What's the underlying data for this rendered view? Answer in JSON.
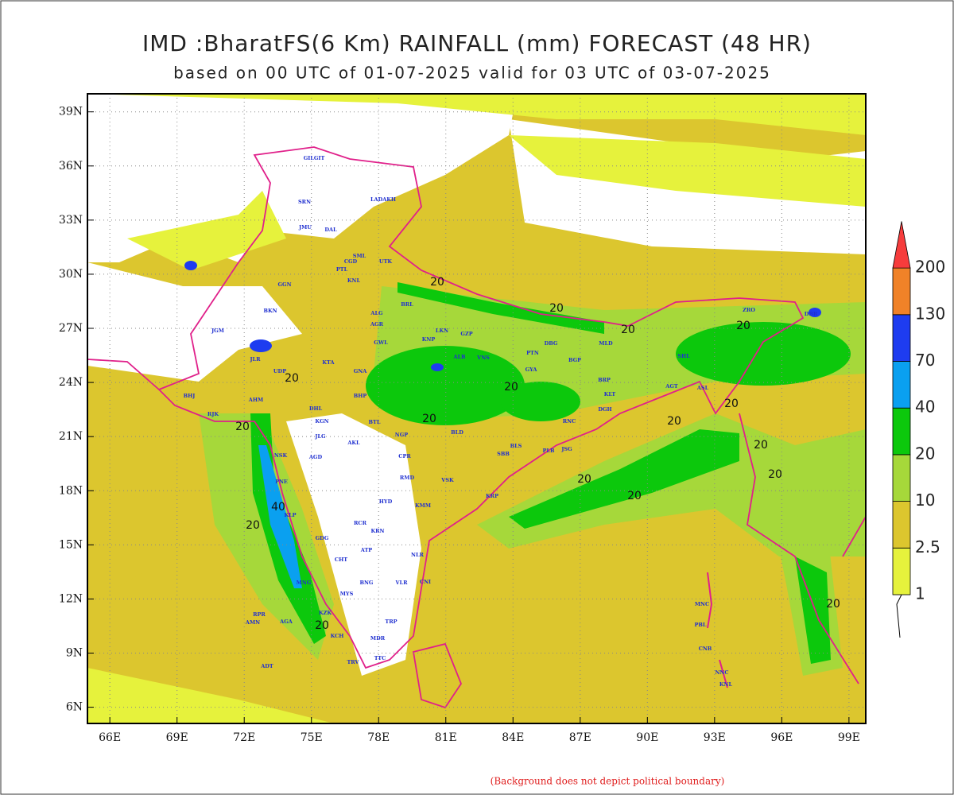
{
  "title": "IMD :BharatFS(6 Km) RAINFALL (mm) FORECAST (48 HR)",
  "subtitle": "based on 00 UTC of 01-07-2025 valid for 03 UTC of 03-07-2025",
  "footer": "(Background does not depict political boundary)",
  "map": {
    "xlim": [
      65,
      99.75
    ],
    "ylim": [
      5.1,
      40
    ],
    "xticks": [
      {
        "value": 66,
        "label": "66E"
      },
      {
        "value": 69,
        "label": "69E"
      },
      {
        "value": 72,
        "label": "72E"
      },
      {
        "value": 75,
        "label": "75E"
      },
      {
        "value": 78,
        "label": "78E"
      },
      {
        "value": 81,
        "label": "81E"
      },
      {
        "value": 84,
        "label": "84E"
      },
      {
        "value": 87,
        "label": "87E"
      },
      {
        "value": 90,
        "label": "90E"
      },
      {
        "value": 93,
        "label": "93E"
      },
      {
        "value": 96,
        "label": "96E"
      },
      {
        "value": 99,
        "label": "99E"
      }
    ],
    "yticks": [
      {
        "value": 6,
        "label": "6N"
      },
      {
        "value": 9,
        "label": "9N"
      },
      {
        "value": 12,
        "label": "12N"
      },
      {
        "value": 15,
        "label": "15N"
      },
      {
        "value": 18,
        "label": "18N"
      },
      {
        "value": 21,
        "label": "21N"
      },
      {
        "value": 24,
        "label": "24N"
      },
      {
        "value": 27,
        "label": "27N"
      },
      {
        "value": 30,
        "label": "30N"
      },
      {
        "value": 33,
        "label": "33N"
      },
      {
        "value": 36,
        "label": "36N"
      },
      {
        "value": 39,
        "label": "39N"
      }
    ],
    "grid": true,
    "stations": [
      "GILGIT",
      "LADAKH",
      "SRN",
      "JMU",
      "DAL",
      "SML",
      "UTK",
      "CGD",
      "PTL",
      "KNL",
      "GGN",
      "BKN",
      "JGM",
      "JLR",
      "UDP",
      "KTA",
      "AHM",
      "BHJ",
      "RJK",
      "DHL",
      "KGN",
      "JLG",
      "NSK",
      "AGD",
      "PNE",
      "KLP",
      "GDG",
      "CHT",
      "MYS",
      "MNG",
      "KZK",
      "KCH",
      "MDR",
      "TRV",
      "TTC",
      "TRP",
      "BNG",
      "VLR",
      "CNI",
      "NLR",
      "ATP",
      "KRN",
      "RCR",
      "HYD",
      "KMM",
      "RMD",
      "CPR",
      "NGP",
      "AKL",
      "BTL",
      "BHP",
      "GNA",
      "GWL",
      "AGR",
      "ALG",
      "BRL",
      "LKN",
      "KNP",
      "ALB",
      "VNS",
      "GZP",
      "PTN",
      "GYA",
      "DBG",
      "BGP",
      "MLD",
      "BRP",
      "KLT",
      "DGH",
      "RNC",
      "JSG",
      "BLS",
      "PLB",
      "SBB",
      "KRP",
      "VSK",
      "BLD",
      "RPR",
      "AMN",
      "AGA",
      "ADT",
      "MNC",
      "PBL",
      "CNB",
      "NNC",
      "KNL",
      "SHL",
      "ASL",
      "AGT",
      "ZRO",
      "DBR"
    ],
    "contour_labels": [
      "20",
      "20",
      "20",
      "20",
      "20",
      "20",
      "20",
      "20",
      "20",
      "20",
      "20",
      "20",
      "20",
      "20",
      "20",
      "20",
      "20",
      "40"
    ]
  },
  "legend": {
    "levels": [
      1,
      2.5,
      10,
      20,
      40,
      70,
      130,
      200
    ],
    "colors": [
      "#e6f23c",
      "#dcc62e",
      "#a6d83a",
      "#0cc80c",
      "#0aa0f0",
      "#1e3cf0",
      "#f08228",
      "#f63c3c"
    ]
  }
}
